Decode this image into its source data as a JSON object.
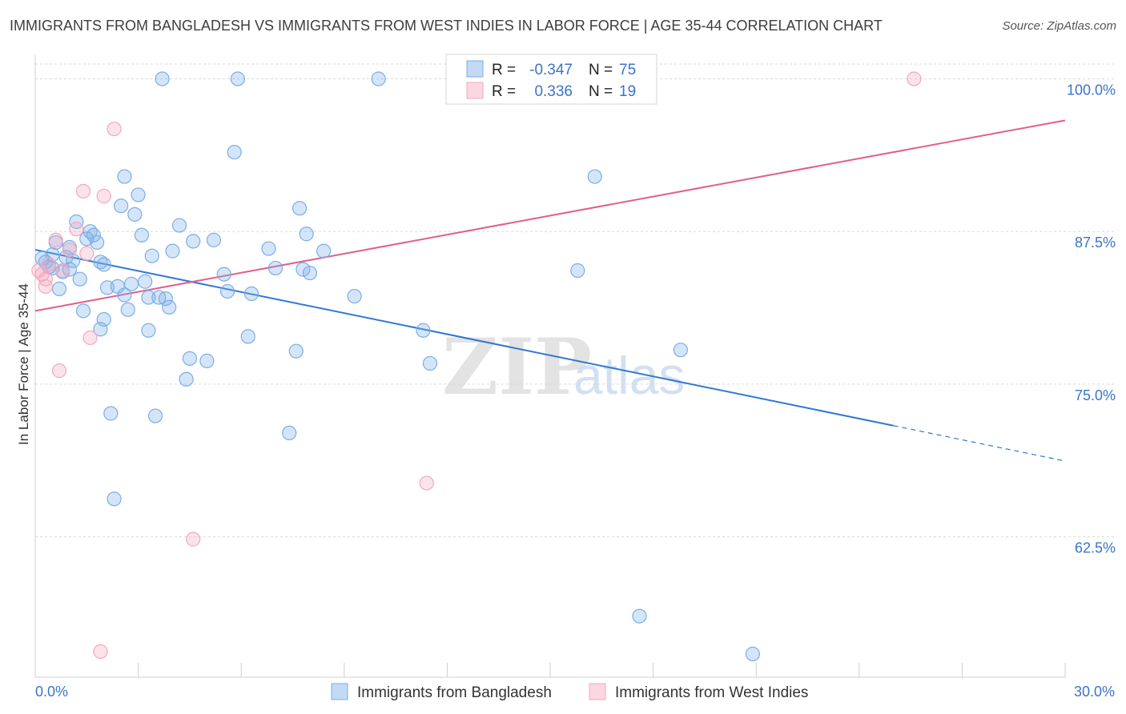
{
  "chart_data": {
    "type": "scatter",
    "title": "IMMIGRANTS FROM BANGLADESH VS IMMIGRANTS FROM WEST INDIES IN LABOR FORCE | AGE 35-44 CORRELATION CHART",
    "source": "Source: ZipAtlas.com",
    "xlabel": "",
    "ylabel": "In Labor Force | Age 35-44",
    "xlim": [
      0,
      30
    ],
    "ylim": [
      51,
      102
    ],
    "x_tick_labels": [
      {
        "value": 0,
        "label": "0.0%"
      },
      {
        "value": 30,
        "label": "30.0%"
      }
    ],
    "y_ticks": [
      62.5,
      75.0,
      87.5,
      100.0
    ],
    "y_tick_labels": [
      "62.5%",
      "75.0%",
      "87.5%",
      "100.0%"
    ],
    "watermark": {
      "zip": "ZIP",
      "atlas": "atlas"
    },
    "legend": {
      "placement": "top-center",
      "entries": [
        {
          "r_label": "R =",
          "r_value": "-0.347",
          "n_label": "N =",
          "n_value": "75"
        },
        {
          "r_label": "R =",
          "r_value": "0.336",
          "n_label": "N =",
          "n_value": "19"
        }
      ]
    },
    "series": [
      {
        "name": "Immigrants from Bangladesh",
        "color": "#7aaee8",
        "line_color": "#2f78d1",
        "trend": {
          "x0": 0,
          "y0": 86.0,
          "x1": 25.0,
          "y1": 71.6,
          "dash_to": 30,
          "dash_y": 68.7
        },
        "points": [
          [
            0.2,
            85.3
          ],
          [
            0.3,
            85.0
          ],
          [
            0.4,
            84.6
          ],
          [
            0.5,
            85.6
          ],
          [
            0.6,
            86.6
          ],
          [
            0.7,
            82.8
          ],
          [
            0.8,
            84.2
          ],
          [
            0.9,
            85.4
          ],
          [
            1.0,
            86.2
          ],
          [
            1.1,
            85.1
          ],
          [
            1.2,
            88.3
          ],
          [
            1.3,
            83.6
          ],
          [
            1.4,
            81.0
          ],
          [
            1.5,
            86.9
          ],
          [
            1.6,
            87.5
          ],
          [
            1.7,
            87.2
          ],
          [
            1.8,
            86.6
          ],
          [
            1.9,
            79.5
          ],
          [
            1.9,
            85.0
          ],
          [
            2.0,
            84.8
          ],
          [
            2.0,
            80.3
          ],
          [
            2.1,
            82.9
          ],
          [
            2.2,
            72.6
          ],
          [
            2.3,
            65.6
          ],
          [
            2.4,
            83.0
          ],
          [
            2.5,
            89.6
          ],
          [
            2.6,
            82.3
          ],
          [
            2.6,
            92.0
          ],
          [
            2.7,
            81.1
          ],
          [
            2.8,
            83.2
          ],
          [
            2.9,
            88.9
          ],
          [
            3.0,
            90.5
          ],
          [
            3.1,
            87.2
          ],
          [
            3.2,
            83.4
          ],
          [
            3.3,
            82.1
          ],
          [
            3.3,
            79.4
          ],
          [
            3.4,
            85.5
          ],
          [
            3.5,
            72.4
          ],
          [
            3.6,
            82.1
          ],
          [
            3.7,
            100.0
          ],
          [
            3.8,
            82.0
          ],
          [
            3.9,
            81.3
          ],
          [
            4.0,
            85.9
          ],
          [
            4.2,
            88.0
          ],
          [
            4.4,
            75.4
          ],
          [
            4.5,
            77.1
          ],
          [
            4.6,
            86.7
          ],
          [
            5.0,
            76.9
          ],
          [
            5.2,
            86.8
          ],
          [
            5.5,
            84.0
          ],
          [
            5.6,
            82.6
          ],
          [
            5.8,
            94.0
          ],
          [
            5.9,
            100.0
          ],
          [
            6.2,
            78.9
          ],
          [
            6.3,
            82.4
          ],
          [
            6.8,
            86.1
          ],
          [
            7.0,
            84.5
          ],
          [
            7.4,
            71.0
          ],
          [
            7.6,
            77.7
          ],
          [
            7.7,
            89.4
          ],
          [
            7.8,
            84.4
          ],
          [
            7.9,
            87.3
          ],
          [
            8.0,
            84.1
          ],
          [
            8.4,
            85.9
          ],
          [
            9.3,
            82.2
          ],
          [
            10.0,
            100.0
          ],
          [
            11.3,
            79.4
          ],
          [
            11.5,
            76.7
          ],
          [
            15.8,
            84.3
          ],
          [
            16.3,
            92.0
          ],
          [
            17.6,
            56.0
          ],
          [
            18.8,
            77.8
          ],
          [
            20.9,
            52.9
          ],
          [
            0.5,
            84.5
          ],
          [
            1.0,
            84.4
          ]
        ]
      },
      {
        "name": "Immigrants from West Indies",
        "color": "#f3a7bd",
        "line_color": "#e0608a",
        "trend": {
          "x0": 0,
          "y0": 81.0,
          "x1": 30,
          "y1": 96.6
        },
        "points": [
          [
            0.1,
            84.3
          ],
          [
            0.2,
            84.0
          ],
          [
            0.3,
            83.6
          ],
          [
            0.4,
            84.8
          ],
          [
            0.3,
            83.0
          ],
          [
            0.6,
            86.8
          ],
          [
            0.7,
            76.1
          ],
          [
            0.8,
            84.3
          ],
          [
            1.0,
            86.0
          ],
          [
            1.2,
            87.7
          ],
          [
            1.4,
            90.8
          ],
          [
            1.5,
            85.7
          ],
          [
            1.6,
            78.8
          ],
          [
            1.9,
            53.1
          ],
          [
            2.0,
            90.4
          ],
          [
            2.3,
            95.9
          ],
          [
            4.6,
            62.3
          ],
          [
            11.4,
            66.9
          ],
          [
            25.6,
            100.0
          ]
        ]
      }
    ]
  },
  "series_legend_labels": [
    "Immigrants from Bangladesh",
    "Immigrants from West Indies"
  ]
}
